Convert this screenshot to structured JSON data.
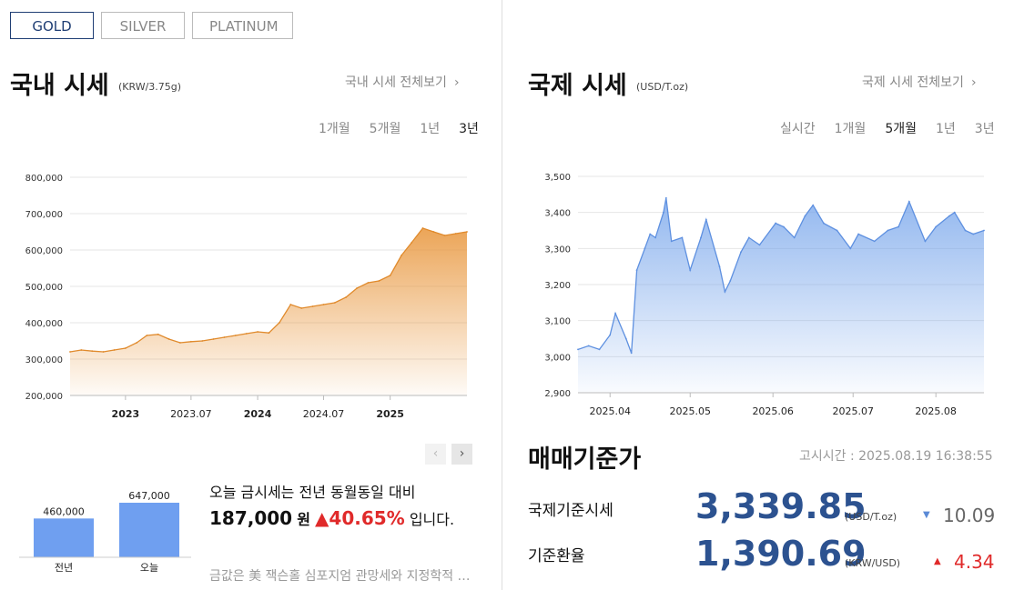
{
  "metal_tabs": [
    {
      "label": "GOLD",
      "active": true
    },
    {
      "label": "SILVER",
      "active": false
    },
    {
      "label": "PLATINUM",
      "active": false
    }
  ],
  "domestic": {
    "title": "국내 시세",
    "unit": "(KRW/3.75g)",
    "more": "국내 시세 전체보기",
    "periods": [
      {
        "label": "1개월",
        "selected": false
      },
      {
        "label": "5개월",
        "selected": false
      },
      {
        "label": "1년",
        "selected": false
      },
      {
        "label": "3년",
        "selected": true
      }
    ]
  },
  "international": {
    "title": "국제 시세",
    "unit": "(USD/T.oz)",
    "more": "국제 시세 전체보기",
    "periods": [
      {
        "label": "실시간",
        "selected": false
      },
      {
        "label": "1개월",
        "selected": false
      },
      {
        "label": "5개월",
        "selected": true
      },
      {
        "label": "1년",
        "selected": false
      },
      {
        "label": "3년",
        "selected": false
      }
    ]
  },
  "chart_data": [
    {
      "type": "area",
      "title": "국내 시세",
      "color": "#e8953a",
      "ylim": [
        200000,
        800000
      ],
      "y_ticks": [
        800000,
        700000,
        600000,
        500000,
        400000,
        300000,
        200000
      ],
      "y_tick_labels": [
        "800,000",
        "700,000",
        "600,000",
        "500,000",
        "400,000",
        "300,000",
        "200,000"
      ],
      "x_ticks": [
        {
          "label": "2023",
          "bold": true,
          "x": "2023-01"
        },
        {
          "label": "2023.07",
          "bold": false,
          "x": "2023-07"
        },
        {
          "label": "2024",
          "bold": true,
          "x": "2024-01"
        },
        {
          "label": "2024.07",
          "bold": false,
          "x": "2024-07"
        },
        {
          "label": "2025",
          "bold": true,
          "x": "2025-01"
        }
      ],
      "x": [
        "2022-08",
        "2022-09",
        "2022-10",
        "2022-11",
        "2022-12",
        "2023-01",
        "2023-02",
        "2023-03",
        "2023-04",
        "2023-05",
        "2023-06",
        "2023-07",
        "2023-08",
        "2023-09",
        "2023-10",
        "2023-11",
        "2023-12",
        "2024-01",
        "2024-02",
        "2024-03",
        "2024-04",
        "2024-05",
        "2024-06",
        "2024-07",
        "2024-08",
        "2024-09",
        "2024-10",
        "2024-11",
        "2024-12",
        "2025-01",
        "2025-02",
        "2025-03",
        "2025-04",
        "2025-05",
        "2025-06",
        "2025-07",
        "2025-08"
      ],
      "values": [
        320000,
        325000,
        322000,
        320000,
        325000,
        330000,
        345000,
        365000,
        368000,
        355000,
        345000,
        348000,
        350000,
        355000,
        360000,
        365000,
        370000,
        375000,
        372000,
        400000,
        450000,
        440000,
        445000,
        450000,
        455000,
        470000,
        495000,
        510000,
        515000,
        530000,
        585000,
        620000,
        660000,
        650000,
        640000,
        645000,
        650000
      ]
    },
    {
      "type": "area",
      "title": "국제 시세",
      "color": "#6fa0ea",
      "ylim": [
        2900,
        3500
      ],
      "y_ticks": [
        3500,
        3400,
        3300,
        3200,
        3100,
        3000,
        2900
      ],
      "y_tick_labels": [
        "3,500",
        "3,400",
        "3,300",
        "3,200",
        "3,100",
        "3,000",
        "2,900"
      ],
      "x_ticks": [
        {
          "label": "2025.04",
          "x": "2025-04-01"
        },
        {
          "label": "2025.05",
          "x": "2025-05-01"
        },
        {
          "label": "2025.06",
          "x": "2025-06-01"
        },
        {
          "label": "2025.07",
          "x": "2025-07-01"
        },
        {
          "label": "2025.08",
          "x": "2025-08-01"
        }
      ],
      "x": [
        "2025-03-20",
        "2025-03-24",
        "2025-03-28",
        "2025-04-01",
        "2025-04-03",
        "2025-04-07",
        "2025-04-09",
        "2025-04-11",
        "2025-04-14",
        "2025-04-16",
        "2025-04-18",
        "2025-04-21",
        "2025-04-22",
        "2025-04-24",
        "2025-04-28",
        "2025-05-01",
        "2025-05-05",
        "2025-05-07",
        "2025-05-12",
        "2025-05-14",
        "2025-05-16",
        "2025-05-20",
        "2025-05-23",
        "2025-05-27",
        "2025-06-02",
        "2025-06-05",
        "2025-06-09",
        "2025-06-13",
        "2025-06-16",
        "2025-06-20",
        "2025-06-25",
        "2025-06-30",
        "2025-07-03",
        "2025-07-09",
        "2025-07-14",
        "2025-07-18",
        "2025-07-22",
        "2025-07-28",
        "2025-08-01",
        "2025-08-06",
        "2025-08-08",
        "2025-08-12",
        "2025-08-15",
        "2025-08-19"
      ],
      "values": [
        3020,
        3030,
        3020,
        3060,
        3120,
        3050,
        3010,
        3240,
        3300,
        3340,
        3330,
        3400,
        3440,
        3320,
        3330,
        3240,
        3330,
        3380,
        3250,
        3180,
        3210,
        3290,
        3330,
        3310,
        3370,
        3360,
        3330,
        3390,
        3420,
        3370,
        3350,
        3300,
        3340,
        3320,
        3350,
        3360,
        3430,
        3320,
        3360,
        3390,
        3400,
        3350,
        3340,
        3350
      ]
    },
    {
      "type": "bar",
      "categories": [
        "전년",
        "오늘"
      ],
      "values": [
        460000,
        647000
      ],
      "value_labels": [
        "460,000",
        "647,000"
      ],
      "color": "#6f9ff0"
    }
  ],
  "comparison": {
    "line1": "오늘 금시세는 전년 동월동일 대비",
    "amount": "187,000",
    "amount_unit": "원",
    "pct_arrow": "▲",
    "pct": "40.65%",
    "tail": "입니다.",
    "note": "금값은 美 잭슨홀 심포지엄 관망세와 지정학적 리스크 속에서 혼조세를 보였습니다."
  },
  "standard": {
    "title": "매매기준가",
    "time_label": "고시시간 : 2025.08.19 16:38:55",
    "rows": [
      {
        "label": "국제기준시세",
        "value": "3,339.85",
        "unit": "(USD/T.oz)",
        "arrow": "▼",
        "change": "10.09",
        "direction": "down"
      },
      {
        "label": "기준환율",
        "value": "1,390.69",
        "unit": "(KRW/USD)",
        "arrow": "▲",
        "change": "4.34",
        "direction": "up"
      }
    ]
  }
}
